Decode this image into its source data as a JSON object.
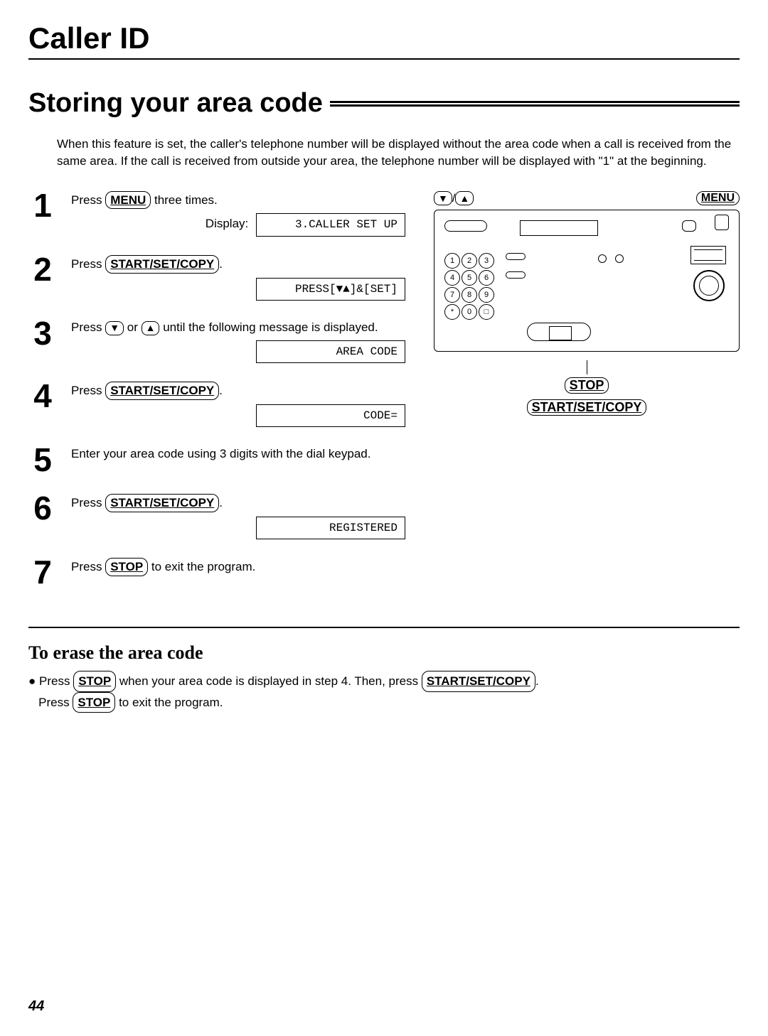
{
  "chapter": "Caller ID",
  "section": "Storing your area code",
  "intro": "When this feature is set, the caller's telephone number will be displayed without the area code when a call is received from the same area. If the call is received from outside your area, the telephone number will be displayed with \"1\" at the beginning.",
  "buttons": {
    "menu": "MENU",
    "start": "START/SET/COPY",
    "stop": "STOP"
  },
  "steps": [
    {
      "num": "1",
      "text_pre": "Press ",
      "btn": "menu",
      "text_post": " three times.",
      "display_label": "Display:",
      "display": "3.CALLER SET UP"
    },
    {
      "num": "2",
      "text_pre": "Press ",
      "btn": "start",
      "text_post": ".",
      "display": "PRESS[▼▲]&[SET]"
    },
    {
      "num": "3",
      "text_pre": "Press ",
      "arrows": true,
      "text_post": " until the following message is displayed.",
      "display": "AREA CODE"
    },
    {
      "num": "4",
      "text_pre": "Press ",
      "btn": "start",
      "text_post": ".",
      "display": "CODE="
    },
    {
      "num": "5",
      "text": "Enter your area code using 3 digits with the dial keypad."
    },
    {
      "num": "6",
      "text_pre": "Press ",
      "btn": "start",
      "text_post": ".",
      "display": "REGISTERED"
    },
    {
      "num": "7",
      "text_pre": "Press ",
      "btn": "stop",
      "text_post": " to exit the program."
    }
  ],
  "erase": {
    "title": "To erase the area code",
    "line1_pre": "Press ",
    "line1_mid": " when your area code is displayed in step 4. Then, press ",
    "line1_post": ".",
    "line2_pre": "Press ",
    "line2_post": " to exit the program."
  },
  "dialpad": [
    [
      "1",
      "2",
      "3"
    ],
    [
      "4",
      "5",
      "6"
    ],
    [
      "7",
      "8",
      "9"
    ],
    [
      "*",
      "0",
      "□"
    ]
  ],
  "arrows": {
    "down": "▼",
    "up": "▲",
    "sep": "/"
  },
  "page": "44"
}
